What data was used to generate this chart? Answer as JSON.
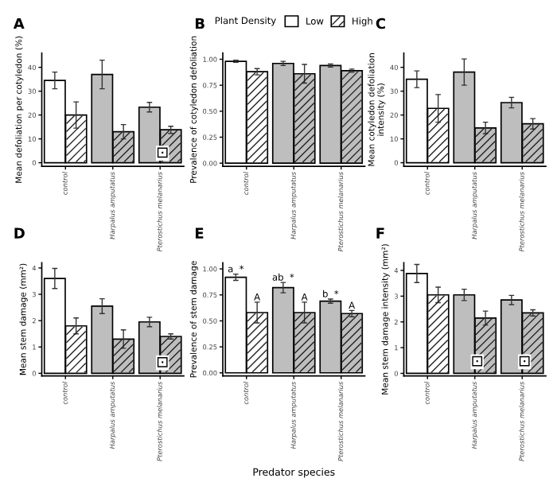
{
  "chart_data": [
    {
      "type": "bar",
      "title": "A",
      "ylabel": "Mean defoliation per cotyledon (%)",
      "categories": [
        "control",
        "Harpalus amputatus",
        "Pterostichus melanarius"
      ],
      "ylim": [
        -1.5,
        46
      ],
      "yticks": [
        0,
        10,
        20,
        30,
        40
      ],
      "series": [
        {
          "colors": [
            "#ffffff",
            "#bebebe",
            "#bebebe"
          ],
          "values": [
            34.5,
            37,
            23.3
          ],
          "errors": [
            3.5,
            6,
            2
          ]
        },
        {
          "colors": [
            "#ffffff",
            "#bebebe",
            "#bebebe"
          ],
          "values": [
            20,
            13,
            13.8
          ],
          "errors": [
            5.5,
            3,
            1.5
          ]
        }
      ],
      "annotations": [
        {
          "text": "⊡",
          "x": "Pterostichus melanarius",
          "y": 4
        }
      ]
    },
    {
      "type": "bar",
      "title": "B",
      "ylabel": "Prevalence of cotyledon defoliation",
      "categories": [
        "control",
        "Harpalus amputatus",
        "Pterostichus melanarius"
      ],
      "ylim": [
        -0.03,
        1.06
      ],
      "yticks": [
        {
          "value": 0,
          "label": "0.00"
        },
        {
          "value": 0.25,
          "label": "0.25"
        },
        {
          "value": 0.5,
          "label": "0.50"
        },
        {
          "value": 0.75,
          "label": "0.75"
        },
        {
          "value": 1,
          "label": "1.00"
        }
      ],
      "legend": "top",
      "legend_title": "Plant Density",
      "series": [
        {
          "name": "Low",
          "colors": [
            "#ffffff",
            "#bebebe",
            "#bebebe"
          ],
          "values": [
            0.98,
            0.96,
            0.94
          ],
          "errors": [
            0.01,
            0.02,
            0.015
          ]
        },
        {
          "name": "High",
          "colors": [
            "#ffffff",
            "#bebebe",
            "#bebebe"
          ],
          "values": [
            0.88,
            0.86,
            0.89
          ],
          "errors": [
            0.03,
            0.09,
            0.015
          ]
        }
      ]
    },
    {
      "type": "bar",
      "title": "C",
      "ylabel": "Mean cotyledon defoliation\nintensity (%)",
      "categories": [
        "control",
        "Harpalus amputatus",
        "Pterostichus melanarius"
      ],
      "ylim": [
        -1.5,
        46
      ],
      "yticks": [
        0,
        10,
        20,
        30,
        40
      ],
      "series": [
        {
          "colors": [
            "#ffffff",
            "#bebebe",
            "#bebebe"
          ],
          "values": [
            35,
            38,
            25.2
          ],
          "errors": [
            3.5,
            5.5,
            2.2
          ]
        },
        {
          "colors": [
            "#ffffff",
            "#bebebe",
            "#bebebe"
          ],
          "values": [
            22.8,
            14.6,
            16.3
          ],
          "errors": [
            5.8,
            2.4,
            2.2
          ]
        }
      ]
    },
    {
      "type": "bar",
      "title": "D",
      "ylabel": "Mean stem damage (mm²)",
      "categories": [
        "control",
        "Harpalus amputatus",
        "Pterostichus melanarius"
      ],
      "ylim": [
        -0.1,
        4.2
      ],
      "yticks": [
        0,
        1,
        2,
        3,
        4
      ],
      "series": [
        {
          "colors": [
            "#ffffff",
            "#bebebe",
            "#bebebe"
          ],
          "values": [
            3.6,
            2.55,
            1.95
          ],
          "errors": [
            0.38,
            0.28,
            0.18
          ]
        },
        {
          "colors": [
            "#ffffff",
            "#bebebe",
            "#bebebe"
          ],
          "values": [
            1.8,
            1.3,
            1.4
          ],
          "errors": [
            0.3,
            0.35,
            0.1
          ]
        }
      ],
      "annotations": [
        {
          "text": "⊡",
          "x": "Pterostichus melanarius",
          "y": 0.4
        }
      ]
    },
    {
      "type": "bar",
      "title": "E",
      "ylabel": "Prevalence of stem damage",
      "xlabel": "Predator species",
      "categories": [
        "control",
        "Harpalus amputatus",
        "Pterostichus melanarius"
      ],
      "ylim": [
        -0.03,
        1.06
      ],
      "yticks": [
        {
          "value": 0,
          "label": "0.00"
        },
        {
          "value": 0.25,
          "label": "0.25"
        },
        {
          "value": 0.5,
          "label": "0.50"
        },
        {
          "value": 0.75,
          "label": "0.75"
        },
        {
          "value": 1,
          "label": "1.00"
        }
      ],
      "series": [
        {
          "colors": [
            "#ffffff",
            "#bebebe",
            "#bebebe"
          ],
          "values": [
            0.92,
            0.82,
            0.69
          ],
          "errors": [
            0.03,
            0.05,
            0.02
          ],
          "value_labels": [
            "a  *",
            "ab  *",
            "b  *"
          ]
        },
        {
          "colors": [
            "#ffffff",
            "#bebebe",
            "#bebebe"
          ],
          "values": [
            0.58,
            0.58,
            0.57
          ],
          "errors": [
            0.1,
            0.1,
            0.03
          ],
          "value_labels": [
            "A",
            "A",
            "A"
          ]
        }
      ]
    },
    {
      "type": "bar",
      "title": "F",
      "ylabel": "Mean stem damage intensity (mm²)",
      "categories": [
        "control",
        "Harpalus amputatus",
        "Pterostichus melanarius"
      ],
      "ylim": [
        -0.1,
        4.3
      ],
      "yticks": [
        0,
        1,
        2,
        3,
        4
      ],
      "series": [
        {
          "colors": [
            "#ffffff",
            "#bebebe",
            "#bebebe"
          ],
          "values": [
            3.88,
            3.05,
            2.85
          ],
          "errors": [
            0.35,
            0.22,
            0.18
          ]
        },
        {
          "colors": [
            "#ffffff",
            "#bebebe",
            "#bebebe"
          ],
          "values": [
            3.05,
            2.15,
            2.35
          ],
          "errors": [
            0.3,
            0.27,
            0.12
          ]
        }
      ],
      "annotations": [
        {
          "text": "⊡",
          "x": "Harpalus amputatus",
          "y": 0.45
        },
        {
          "text": "⊡",
          "x": "Pterostichus melanarius",
          "y": 0.45
        }
      ]
    }
  ]
}
